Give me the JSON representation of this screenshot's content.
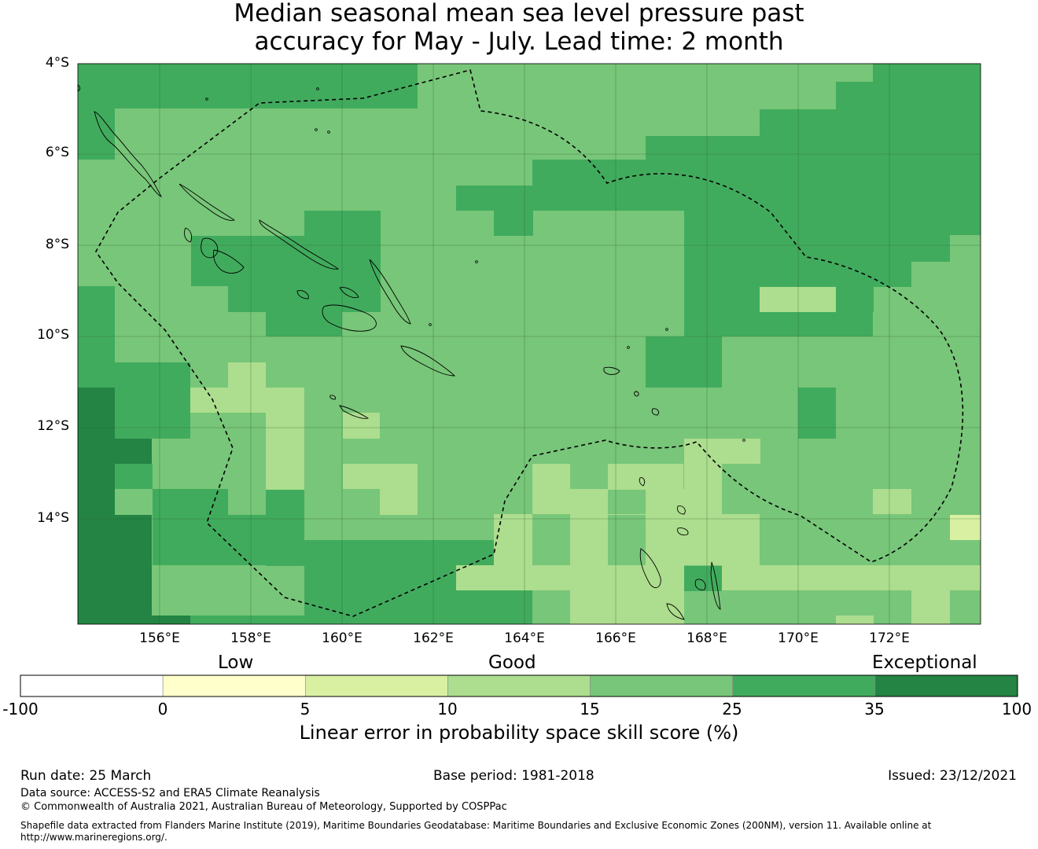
{
  "title_line1": "Median seasonal mean sea level pressure past",
  "title_line2": "accuracy for May - July. Lead time: 2 month",
  "lat_labels": [
    "4°S",
    "6°S",
    "8°S",
    "10°S",
    "12°S",
    "14°S"
  ],
  "lon_labels": [
    "156°E",
    "158°E",
    "160°E",
    "162°E",
    "164°E",
    "166°E",
    "168°E",
    "170°E",
    "172°E"
  ],
  "colorbar": {
    "categories": [
      "Low",
      "Good",
      "Exceptional"
    ],
    "ticks": [
      "-100",
      "0",
      "5",
      "10",
      "15",
      "25",
      "35",
      "100"
    ],
    "colors": [
      "#ffffff",
      "#ffffcc",
      "#d9f0a3",
      "#addd8e",
      "#78c679",
      "#41ab5d",
      "#238443"
    ],
    "label": "Linear error in probability space skill score (%)"
  },
  "footer": {
    "run_date": "Run date: 25 March",
    "base_period": "Base period: 1981-2018",
    "issued": "Issued: 23/12/2021",
    "data_source": "Data source: ACCESS-S2 and ERA5 Climate Reanalysis",
    "copyright": "© Commonwealth of Australia 2021, Australian Bureau of Meteorology, Supported by COSPPac",
    "shapefile_line1": "Shapefile data extracted from Flanders Marine Institute (2019), Maritime Boundaries Geodatabase: Maritime Boundaries and Exclusive Economic Zones (200NM), version 11. Available online at",
    "shapefile_line2": "http://www.marineregions.org/."
  },
  "grid_data": {
    "legend": {
      "a": "15-25",
      "b": "25-35",
      "c": "35-100",
      "d": "10-15",
      "e": "5-10"
    },
    "rows": [
      "bbbbbbbbbaaaaaaaaaaaaaaaaaaaaaaaaaaaaaaaaaaaaaaaaaaabbbbbbbbbbbbbbbbbbbbbbbbbbbbbbbbbbbbbbbbbbbbbbbbbbbbbbbbbbbbbbbbbbbbbbbbbbbbbbbbbbbbbbbbbb",
      "bbbbbbbbbbbbbbbbbbbbbbbbbbbbbbbbbbbbbbbbbbbbbbbbbbbbbbbbbbbbbbbbbbbbbbbbbbbbbbbbbbbbbbbbbbbbbbbbbbbbbbbbbbbbbbbbbbbbbbbbbbbbbbbbbbbbbbbbbb"
    ]
  }
}
